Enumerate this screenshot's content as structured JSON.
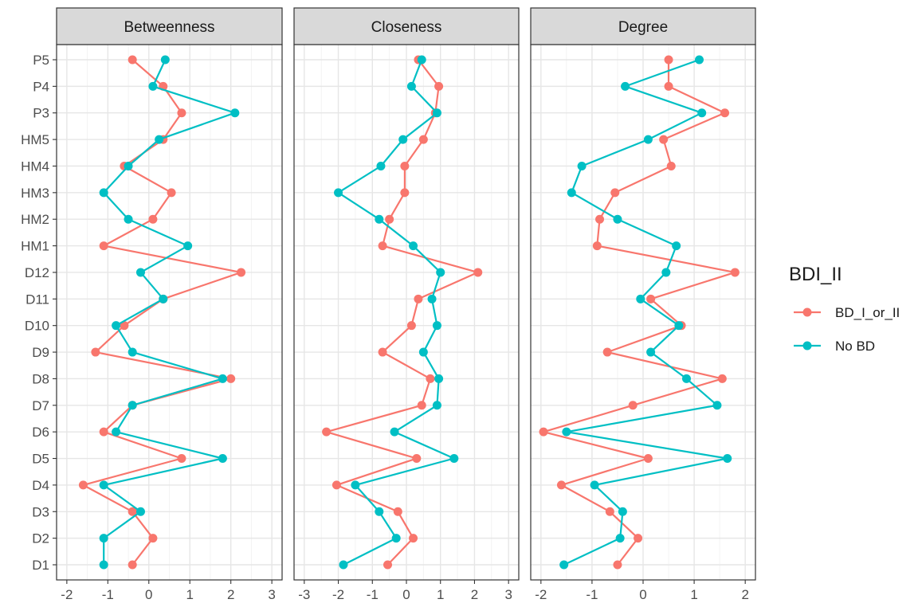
{
  "chart_data": {
    "type": "line",
    "facets": [
      "Betweenness",
      "Closeness",
      "Degree"
    ],
    "categories": [
      "D1",
      "D2",
      "D3",
      "D4",
      "D5",
      "D6",
      "D7",
      "D8",
      "D9",
      "D10",
      "D11",
      "D12",
      "HM1",
      "HM2",
      "HM3",
      "HM4",
      "HM5",
      "P3",
      "P4",
      "P5"
    ],
    "xticks": [
      [
        -2,
        -1,
        0,
        1,
        2,
        3
      ],
      [
        -3,
        -2,
        -1,
        0,
        1,
        2,
        3
      ],
      [
        -2,
        -1,
        0,
        1,
        2
      ]
    ],
    "xlim": [
      [
        -2.25,
        3.25
      ],
      [
        -3.3,
        3.3
      ],
      [
        -2.2,
        2.2
      ]
    ],
    "grid": true,
    "legend": {
      "title": "BDI_II",
      "position": "right",
      "entries": [
        "BD_I_or_II",
        "No BD"
      ]
    },
    "series": [
      {
        "name": "BD_I_or_II",
        "color": "#F8766D",
        "values": {
          "Betweenness": [
            -0.4,
            0.1,
            -0.4,
            -1.6,
            0.8,
            -1.1,
            -0.4,
            2.0,
            -1.3,
            -0.6,
            0.35,
            2.25,
            -1.1,
            0.1,
            0.55,
            -0.6,
            0.35,
            0.8,
            0.35,
            -0.4
          ],
          "Closeness": [
            -0.55,
            0.2,
            -0.25,
            -2.05,
            0.3,
            -2.35,
            0.45,
            0.7,
            -0.7,
            0.15,
            0.35,
            2.1,
            -0.7,
            -0.5,
            -0.05,
            -0.05,
            0.5,
            0.85,
            0.95,
            0.35
          ],
          "Degree": [
            -0.5,
            -0.1,
            -0.65,
            -1.6,
            0.1,
            -1.95,
            -0.2,
            1.55,
            -0.7,
            0.75,
            0.15,
            1.8,
            -0.9,
            -0.85,
            -0.55,
            0.55,
            0.4,
            1.6,
            0.5,
            0.5
          ]
        }
      },
      {
        "name": "No BD",
        "color": "#00BFC4",
        "values": {
          "Betweenness": [
            -1.1,
            -1.1,
            -0.2,
            -1.1,
            1.8,
            -0.8,
            -0.4,
            1.8,
            -0.4,
            -0.8,
            0.35,
            -0.2,
            0.95,
            -0.5,
            -1.1,
            -0.5,
            0.25,
            2.1,
            0.1,
            0.4
          ],
          "Closeness": [
            -1.85,
            -0.3,
            -0.8,
            -1.5,
            1.4,
            -0.35,
            0.9,
            0.95,
            0.5,
            0.9,
            0.75,
            1.0,
            0.2,
            -0.8,
            -2.0,
            -0.75,
            -0.1,
            0.9,
            0.15,
            0.45
          ],
          "Degree": [
            -1.55,
            -0.45,
            -0.4,
            -0.95,
            1.65,
            -1.5,
            1.45,
            0.85,
            0.15,
            0.7,
            -0.05,
            0.45,
            0.65,
            -0.5,
            -1.4,
            -1.2,
            0.1,
            1.15,
            -0.35,
            1.1
          ]
        }
      }
    ]
  }
}
